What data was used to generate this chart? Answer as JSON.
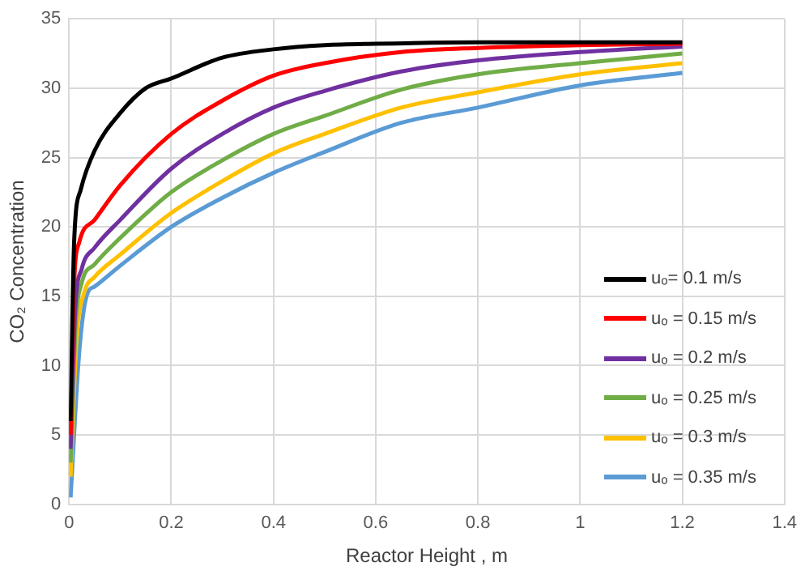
{
  "chart_data": {
    "type": "line",
    "xlabel": "Reactor Height , m",
    "ylabel": "CO₂ Concentration",
    "xlim": [
      0,
      1.4
    ],
    "xticks": [
      0,
      0.2,
      0.4,
      0.6,
      0.8,
      1,
      1.2,
      1.4
    ],
    "ylim": [
      0,
      35
    ],
    "yticks": [
      0,
      5,
      10,
      15,
      20,
      25,
      30,
      35
    ],
    "grid": true,
    "legend": "bottom right",
    "marker": "none",
    "line_style": "solid",
    "series": [
      {
        "name": "uₒ= 0.1 m/s",
        "color": "#000000",
        "x": [
          0.003,
          0.01,
          0.023,
          0.05,
          0.1,
          0.15,
          0.2,
          0.3,
          0.4,
          0.5,
          0.6,
          0.8,
          1,
          1.2
        ],
        "values": [
          6,
          19,
          22.7,
          25.5,
          28.2,
          30,
          30.7,
          32.2,
          32.8,
          33.1,
          33.2,
          33.3,
          33.3,
          33.3
        ]
      },
      {
        "name": "uₒ = 0.15 m/s",
        "color": "#ff0000",
        "x": [
          0.003,
          0.01,
          0.02,
          0.05,
          0.1,
          0.2,
          0.3,
          0.4,
          0.5,
          0.65,
          0.8,
          1,
          1.2
        ],
        "values": [
          5,
          16,
          18.9,
          20.5,
          23,
          26.7,
          29.1,
          30.9,
          31.8,
          32.6,
          32.9,
          33.1,
          33.2
        ]
      },
      {
        "name": "uₒ = 0.2 m/s",
        "color": "#7030a0",
        "x": [
          0.003,
          0.012,
          0.025,
          0.05,
          0.1,
          0.2,
          0.3,
          0.4,
          0.5,
          0.65,
          0.8,
          1,
          1.2
        ],
        "values": [
          4,
          14,
          17,
          18.5,
          20.5,
          24.2,
          26.7,
          28.6,
          29.8,
          31.2,
          32,
          32.6,
          33
        ]
      },
      {
        "name": "uₒ = 0.25 m/s",
        "color": "#70ad47",
        "x": [
          0.003,
          0.013,
          0.025,
          0.05,
          0.1,
          0.2,
          0.3,
          0.4,
          0.5,
          0.65,
          0.8,
          1,
          1.2
        ],
        "values": [
          3,
          13,
          16,
          17.3,
          19.2,
          22.5,
          24.8,
          26.7,
          28,
          29.9,
          31,
          31.8,
          32.5
        ]
      },
      {
        "name": "uₒ = 0.3  m/s",
        "color": "#ffc000",
        "x": [
          0.003,
          0.015,
          0.03,
          0.05,
          0.1,
          0.2,
          0.3,
          0.4,
          0.5,
          0.65,
          0.8,
          1,
          1.2
        ],
        "values": [
          2,
          12,
          15.3,
          16.4,
          18,
          21,
          23.3,
          25.3,
          26.7,
          28.6,
          29.7,
          31,
          31.8
        ]
      },
      {
        "name": "uₒ = 0.35  m/s",
        "color": "#5b9bd5",
        "x": [
          0.003,
          0.02,
          0.035,
          0.05,
          0.1,
          0.2,
          0.3,
          0.4,
          0.5,
          0.65,
          0.8,
          1,
          1.2
        ],
        "values": [
          0.5,
          11,
          15.1,
          15.7,
          17.2,
          20,
          22.1,
          23.9,
          25.4,
          27.5,
          28.6,
          30.2,
          31.1
        ]
      }
    ]
  }
}
